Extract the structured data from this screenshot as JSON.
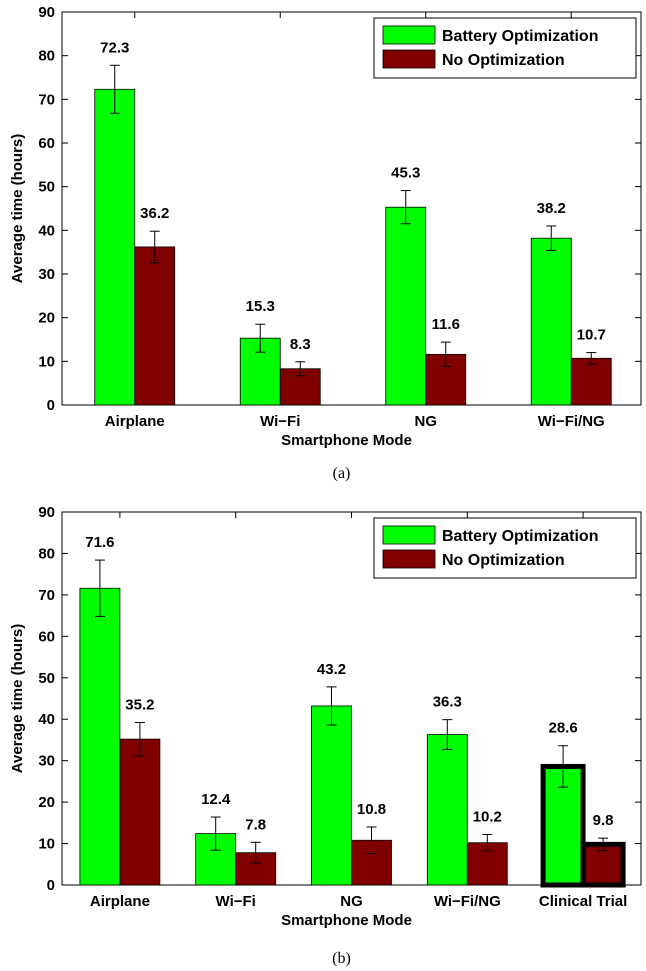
{
  "colors": {
    "battery": "#00ff00",
    "none": "#800000",
    "highlight": "#000000"
  },
  "chart_data": [
    {
      "type": "bar",
      "caption": "(a)",
      "xlabel": "Smartphone Mode",
      "ylabel": "Average time (hours)",
      "ylim": [
        0,
        90
      ],
      "yticks": [
        0,
        10,
        20,
        30,
        40,
        50,
        60,
        70,
        80,
        90
      ],
      "legend_position": "top-right",
      "categories": [
        "Airplane",
        "Wi−Fi",
        "NG",
        "Wi−Fi/NG"
      ],
      "series": [
        {
          "name": "Battery Optimization",
          "values": [
            72.3,
            15.3,
            45.3,
            38.2
          ],
          "errors": [
            5.5,
            3.2,
            3.8,
            2.8
          ]
        },
        {
          "name": "No Optimization",
          "values": [
            36.2,
            8.3,
            11.6,
            10.7
          ],
          "errors": [
            3.6,
            1.6,
            2.8,
            1.3
          ]
        }
      ],
      "highlighted_category": null
    },
    {
      "type": "bar",
      "caption": "(b)",
      "xlabel": "Smartphone Mode",
      "ylabel": "Average time (hours)",
      "ylim": [
        0,
        90
      ],
      "yticks": [
        0,
        10,
        20,
        30,
        40,
        50,
        60,
        70,
        80,
        90
      ],
      "legend_position": "top-right",
      "categories": [
        "Airplane",
        "Wi−Fi",
        "NG",
        "Wi−Fi/NG",
        "Clinical Trial"
      ],
      "series": [
        {
          "name": "Battery Optimization",
          "values": [
            71.6,
            12.4,
            43.2,
            36.3,
            28.6
          ],
          "errors": [
            6.8,
            4.0,
            4.6,
            3.6,
            5.0
          ]
        },
        {
          "name": "No Optimization",
          "values": [
            35.2,
            7.8,
            10.8,
            10.2,
            9.8
          ],
          "errors": [
            4.0,
            2.5,
            3.2,
            2.0,
            1.5
          ]
        }
      ],
      "highlighted_category": "Clinical Trial"
    }
  ]
}
